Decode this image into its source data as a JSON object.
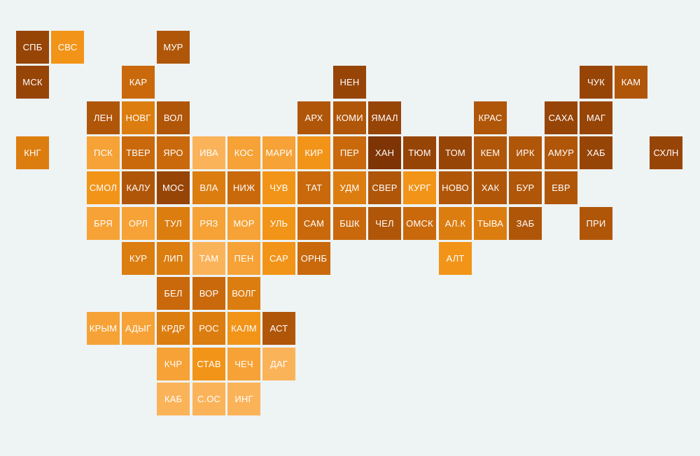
{
  "palette": {
    "background": "#eef3f4",
    "levels": [
      "#fbb35a",
      "#f6a236",
      "#f29418",
      "#dc7d10",
      "#c9690c",
      "#b05609",
      "#974407",
      "#7e3404"
    ]
  },
  "tiles": [
    {
      "label": "СПБ",
      "row": 0,
      "col": 0,
      "level": 6
    },
    {
      "label": "СВС",
      "row": 0,
      "col": 1,
      "level": 2
    },
    {
      "label": "МУР",
      "row": 0,
      "col": 4,
      "level": 5
    },
    {
      "label": "МСК",
      "row": 1,
      "col": 0,
      "level": 6
    },
    {
      "label": "КАР",
      "row": 1,
      "col": 3,
      "level": 4
    },
    {
      "label": "НЕН",
      "row": 1,
      "col": 9,
      "level": 6
    },
    {
      "label": "ЧУК",
      "row": 1,
      "col": 16,
      "level": 6
    },
    {
      "label": "КАМ",
      "row": 1,
      "col": 17,
      "level": 5
    },
    {
      "label": "ЛЕН",
      "row": 2,
      "col": 2,
      "level": 5
    },
    {
      "label": "НОВГ",
      "row": 2,
      "col": 3,
      "level": 3
    },
    {
      "label": "ВОЛ",
      "row": 2,
      "col": 4,
      "level": 5
    },
    {
      "label": "АРХ",
      "row": 2,
      "col": 8,
      "level": 5
    },
    {
      "label": "КОМИ",
      "row": 2,
      "col": 9,
      "level": 5
    },
    {
      "label": "ЯМАЛ",
      "row": 2,
      "col": 10,
      "level": 6
    },
    {
      "label": "КРАС",
      "row": 2,
      "col": 13,
      "level": 5
    },
    {
      "label": "САХА",
      "row": 2,
      "col": 15,
      "level": 6
    },
    {
      "label": "МАГ",
      "row": 2,
      "col": 16,
      "level": 6
    },
    {
      "label": "КНГ",
      "row": 3,
      "col": 0,
      "level": 3
    },
    {
      "label": "ПСК",
      "row": 3,
      "col": 2,
      "level": 1
    },
    {
      "label": "ТВЕР",
      "row": 3,
      "col": 3,
      "level": 4
    },
    {
      "label": "ЯРО",
      "row": 3,
      "col": 4,
      "level": 4
    },
    {
      "label": "ИВА",
      "row": 3,
      "col": 5,
      "level": 0
    },
    {
      "label": "КОС",
      "row": 3,
      "col": 6,
      "level": 1
    },
    {
      "label": "МАРИ",
      "row": 3,
      "col": 7,
      "level": 1
    },
    {
      "label": "КИР",
      "row": 3,
      "col": 8,
      "level": 2
    },
    {
      "label": "ПЕР",
      "row": 3,
      "col": 9,
      "level": 4
    },
    {
      "label": "ХАН",
      "row": 3,
      "col": 10,
      "level": 7
    },
    {
      "label": "ТЮМ",
      "row": 3,
      "col": 11,
      "level": 6
    },
    {
      "label": "ТОМ",
      "row": 3,
      "col": 12,
      "level": 6
    },
    {
      "label": "КЕМ",
      "row": 3,
      "col": 13,
      "level": 5
    },
    {
      "label": "ИРК",
      "row": 3,
      "col": 14,
      "level": 5
    },
    {
      "label": "АМУР",
      "row": 3,
      "col": 15,
      "level": 5
    },
    {
      "label": "ХАБ",
      "row": 3,
      "col": 16,
      "level": 6
    },
    {
      "label": "СХЛН",
      "row": 3,
      "col": 18,
      "level": 6
    },
    {
      "label": "СМОЛ",
      "row": 4,
      "col": 2,
      "level": 2
    },
    {
      "label": "КАЛУ",
      "row": 4,
      "col": 3,
      "level": 5
    },
    {
      "label": "МОС",
      "row": 4,
      "col": 4,
      "level": 6
    },
    {
      "label": "ВЛА",
      "row": 4,
      "col": 5,
      "level": 3
    },
    {
      "label": "НИЖ",
      "row": 4,
      "col": 6,
      "level": 4
    },
    {
      "label": "ЧУВ",
      "row": 4,
      "col": 7,
      "level": 2
    },
    {
      "label": "ТАТ",
      "row": 4,
      "col": 8,
      "level": 4
    },
    {
      "label": "УДМ",
      "row": 4,
      "col": 9,
      "level": 3
    },
    {
      "label": "СВЕР",
      "row": 4,
      "col": 10,
      "level": 5
    },
    {
      "label": "КУРГ",
      "row": 4,
      "col": 11,
      "level": 2
    },
    {
      "label": "НОВО",
      "row": 4,
      "col": 12,
      "level": 5
    },
    {
      "label": "ХАК",
      "row": 4,
      "col": 13,
      "level": 5
    },
    {
      "label": "БУР",
      "row": 4,
      "col": 14,
      "level": 5
    },
    {
      "label": "ЕВР",
      "row": 4,
      "col": 15,
      "level": 5
    },
    {
      "label": "БРЯ",
      "row": 5,
      "col": 2,
      "level": 1
    },
    {
      "label": "ОРЛ",
      "row": 5,
      "col": 3,
      "level": 1
    },
    {
      "label": "ТУЛ",
      "row": 5,
      "col": 4,
      "level": 3
    },
    {
      "label": "РЯЗ",
      "row": 5,
      "col": 5,
      "level": 1
    },
    {
      "label": "МОР",
      "row": 5,
      "col": 6,
      "level": 1
    },
    {
      "label": "УЛЬ",
      "row": 5,
      "col": 7,
      "level": 2
    },
    {
      "label": "САМ",
      "row": 5,
      "col": 8,
      "level": 4
    },
    {
      "label": "БШК",
      "row": 5,
      "col": 9,
      "level": 4
    },
    {
      "label": "ЧЕЛ",
      "row": 5,
      "col": 10,
      "level": 5
    },
    {
      "label": "ОМСК",
      "row": 5,
      "col": 11,
      "level": 4
    },
    {
      "label": "АЛ.К",
      "row": 5,
      "col": 12,
      "level": 3
    },
    {
      "label": "ТЫВА",
      "row": 5,
      "col": 13,
      "level": 3
    },
    {
      "label": "ЗАБ",
      "row": 5,
      "col": 14,
      "level": 5
    },
    {
      "label": "ПРИ",
      "row": 5,
      "col": 16,
      "level": 5
    },
    {
      "label": "КУР",
      "row": 6,
      "col": 3,
      "level": 3
    },
    {
      "label": "ЛИП",
      "row": 6,
      "col": 4,
      "level": 3
    },
    {
      "label": "ТАМ",
      "row": 6,
      "col": 5,
      "level": 0
    },
    {
      "label": "ПЕН",
      "row": 6,
      "col": 6,
      "level": 1
    },
    {
      "label": "САР",
      "row": 6,
      "col": 7,
      "level": 2
    },
    {
      "label": "ОРНБ",
      "row": 6,
      "col": 8,
      "level": 4
    },
    {
      "label": "АЛТ",
      "row": 6,
      "col": 12,
      "level": 2
    },
    {
      "label": "БЕЛ",
      "row": 7,
      "col": 4,
      "level": 4
    },
    {
      "label": "ВОР",
      "row": 7,
      "col": 5,
      "level": 4
    },
    {
      "label": "ВОЛГ",
      "row": 7,
      "col": 6,
      "level": 3
    },
    {
      "label": "КРЫМ",
      "row": 8,
      "col": 2,
      "level": 1
    },
    {
      "label": "АДЫГ",
      "row": 8,
      "col": 3,
      "level": 1
    },
    {
      "label": "КРДР",
      "row": 8,
      "col": 4,
      "level": 3
    },
    {
      "label": "РОС",
      "row": 8,
      "col": 5,
      "level": 3
    },
    {
      "label": "КАЛМ",
      "row": 8,
      "col": 6,
      "level": 2
    },
    {
      "label": "АСТ",
      "row": 8,
      "col": 7,
      "level": 5
    },
    {
      "label": "КЧР",
      "row": 9,
      "col": 4,
      "level": 1
    },
    {
      "label": "СТАВ",
      "row": 9,
      "col": 5,
      "level": 2
    },
    {
      "label": "ЧЕЧ",
      "row": 9,
      "col": 6,
      "level": 1
    },
    {
      "label": "ДАГ",
      "row": 9,
      "col": 7,
      "level": 0
    },
    {
      "label": "КАБ",
      "row": 10,
      "col": 4,
      "level": 0
    },
    {
      "label": "С.ОС",
      "row": 10,
      "col": 5,
      "level": 0
    },
    {
      "label": "ИНГ",
      "row": 10,
      "col": 6,
      "level": 0
    }
  ]
}
